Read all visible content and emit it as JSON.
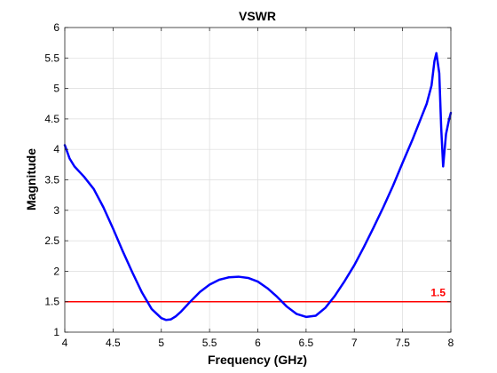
{
  "chart_data": {
    "type": "line",
    "title": "VSWR",
    "xlabel": "Frequency (GHz)",
    "ylabel": "Magnitude",
    "xlim": [
      4,
      8
    ],
    "ylim": [
      1,
      6
    ],
    "x_ticks": [
      "4",
      "4.5",
      "5",
      "5.5",
      "6",
      "6.5",
      "7",
      "7.5",
      "8"
    ],
    "y_ticks": [
      "1",
      "1.5",
      "2",
      "2.5",
      "3",
      "3.5",
      "4",
      "4.5",
      "5",
      "5.5",
      "6"
    ],
    "grid": true,
    "series": [
      {
        "color": "#0000ff",
        "x": [
          4.0,
          4.05,
          4.1,
          4.2,
          4.3,
          4.4,
          4.5,
          4.6,
          4.7,
          4.8,
          4.9,
          5.0,
          5.05,
          5.1,
          5.15,
          5.2,
          5.3,
          5.4,
          5.5,
          5.6,
          5.7,
          5.8,
          5.9,
          6.0,
          6.1,
          6.2,
          6.3,
          6.4,
          6.5,
          6.6,
          6.7,
          6.8,
          6.9,
          7.0,
          7.1,
          7.2,
          7.3,
          7.4,
          7.5,
          7.6,
          7.7,
          7.75,
          7.8,
          7.83,
          7.85,
          7.88,
          7.9,
          7.92,
          7.95,
          7.98,
          8.0
        ],
        "y": [
          4.07,
          3.85,
          3.72,
          3.55,
          3.35,
          3.05,
          2.7,
          2.33,
          1.98,
          1.65,
          1.38,
          1.23,
          1.2,
          1.21,
          1.26,
          1.33,
          1.5,
          1.66,
          1.78,
          1.86,
          1.9,
          1.91,
          1.89,
          1.83,
          1.72,
          1.58,
          1.42,
          1.3,
          1.25,
          1.27,
          1.4,
          1.6,
          1.84,
          2.1,
          2.4,
          2.72,
          3.05,
          3.4,
          3.78,
          4.15,
          4.55,
          4.75,
          5.05,
          5.45,
          5.58,
          5.25,
          4.35,
          3.72,
          4.25,
          4.48,
          4.6
        ]
      }
    ],
    "reference_line": {
      "y": 1.5,
      "label": "1.5",
      "color": "#ff0000"
    }
  }
}
